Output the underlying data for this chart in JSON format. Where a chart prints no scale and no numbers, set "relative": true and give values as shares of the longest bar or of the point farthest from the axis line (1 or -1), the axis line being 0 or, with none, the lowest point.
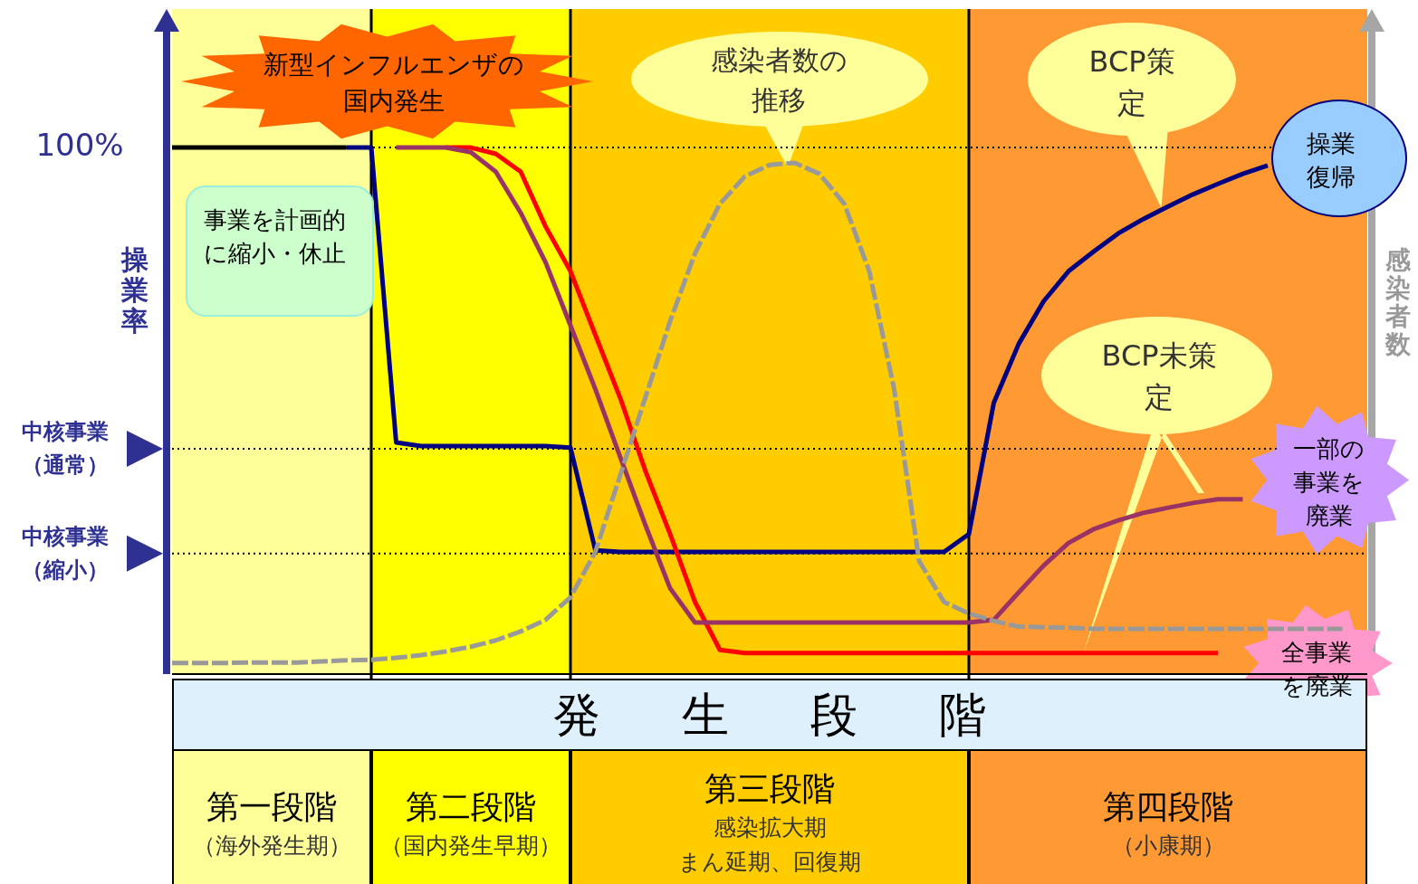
{
  "chart_data": {
    "type": "line",
    "relative": true,
    "ylabel": "操業率",
    "y2label": "感染者数",
    "xlabel": "発生段階",
    "marker": "none",
    "categories": [
      null,
      null,
      null,
      null,
      null,
      null,
      null,
      null,
      null,
      null,
      null,
      null,
      null,
      null,
      null,
      null,
      null,
      null,
      null,
      null,
      null,
      null,
      null,
      null,
      null,
      null,
      null,
      null,
      null,
      null,
      null,
      null,
      null,
      null,
      null,
      null,
      null,
      null,
      null,
      null,
      null,
      null,
      null,
      null,
      null,
      null,
      null,
      null,
      null
    ],
    "series": [
      {
        "color": "#000000",
        "values": [
          1,
          1,
          1,
          1,
          1,
          1,
          1,
          1,
          null,
          null,
          null,
          null,
          null,
          null,
          null,
          null,
          null,
          null,
          null,
          null,
          null,
          null,
          null,
          null,
          null,
          null,
          null,
          null,
          null,
          null,
          null,
          null,
          null,
          null,
          null,
          null,
          null,
          null,
          null,
          null,
          null,
          null,
          null,
          null,
          null,
          null,
          null,
          null,
          null
        ]
      },
      {
        "color": "#999999",
        "line_style": "dashed",
        "values": [
          0.021,
          0.021,
          0.021,
          0.022,
          0.022,
          0.022,
          0.024,
          0.026,
          0.027,
          0.031,
          0.036,
          0.043,
          0.052,
          0.064,
          0.081,
          0.103,
          0.146,
          0.232,
          0.378,
          0.524,
          0.67,
          0.799,
          0.893,
          0.945,
          0.967,
          0.971,
          0.95,
          0.893,
          0.765,
          0.541,
          0.215,
          0.137,
          0.115,
          0.101,
          0.09,
          0.089,
          0.088,
          0.086,
          0.086,
          0.086,
          0.086,
          0.086,
          0.086,
          0.086,
          0.086,
          0.086,
          0.086,
          0.086,
          null
        ]
      },
      {
        "color": "#993366",
        "values": [
          null,
          null,
          null,
          null,
          null,
          null,
          null,
          null,
          null,
          1,
          1,
          1,
          0.991,
          0.954,
          0.876,
          0.782,
          0.662,
          0.541,
          0.412,
          0.284,
          0.163,
          0.098,
          0.098,
          0.098,
          0.098,
          0.098,
          0.098,
          0.098,
          0.098,
          0.098,
          0.098,
          0.098,
          0.098,
          0.103,
          0.155,
          0.206,
          0.249,
          0.275,
          0.292,
          0.306,
          0.316,
          0.325,
          0.332,
          0.332,
          null,
          null,
          null,
          null,
          null
        ]
      },
      {
        "color": "#ff0000",
        "values": [
          null,
          null,
          null,
          null,
          null,
          null,
          null,
          null,
          null,
          null,
          null,
          1,
          1,
          0.988,
          0.954,
          0.85,
          0.765,
          0.644,
          0.524,
          0.387,
          0.266,
          0.137,
          0.046,
          0.04,
          0.04,
          0.04,
          0.04,
          0.04,
          0.04,
          0.04,
          0.04,
          0.04,
          0.04,
          0.04,
          0.04,
          0.04,
          0.04,
          0.04,
          0.04,
          0.04,
          0.04,
          0.04,
          0.04,
          null,
          null,
          null,
          null,
          null,
          null
        ]
      },
      {
        "color": "#000080",
        "values": [
          null,
          null,
          null,
          null,
          null,
          null,
          null,
          1,
          1,
          0.44,
          0.433,
          0.433,
          0.433,
          0.433,
          0.433,
          0.433,
          0.43,
          0.235,
          0.232,
          0.232,
          0.232,
          0.232,
          0.232,
          0.232,
          0.232,
          0.232,
          0.232,
          0.232,
          0.232,
          0.232,
          0.232,
          0.232,
          0.266,
          0.515,
          0.627,
          0.708,
          0.765,
          0.802,
          0.837,
          0.864,
          0.888,
          0.911,
          0.931,
          0.95,
          0.966,
          null,
          null,
          null,
          null
        ]
      }
    ],
    "ref_lines": [
      {
        "axis": "y",
        "value": 1,
        "label": "100%",
        "color": "#000000",
        "line_style": "dotted"
      },
      {
        "axis": "y",
        "value": 0.428,
        "label": "中核事業（通常）",
        "color": "#000000",
        "line_style": "dotted"
      },
      {
        "axis": "y",
        "value": 0.229,
        "label": "中核事業（縮小）",
        "color": "#000000",
        "line_style": "dotted"
      }
    ],
    "annotations": [
      "新型インフルエンザの国内発生",
      "事業を計画的に縮小・休止",
      "感染者数の推移",
      "BCP策定",
      "BCP未策定",
      "操業復帰",
      "一部の事業を廃業",
      "全事業を廃業",
      "第一段階",
      "（海外発生期）",
      "第二段階",
      "（国内発生早期）",
      "第三段階",
      "感染拡大期",
      "まん延期、回復期",
      "第四段階",
      "（小康期）"
    ]
  }
}
